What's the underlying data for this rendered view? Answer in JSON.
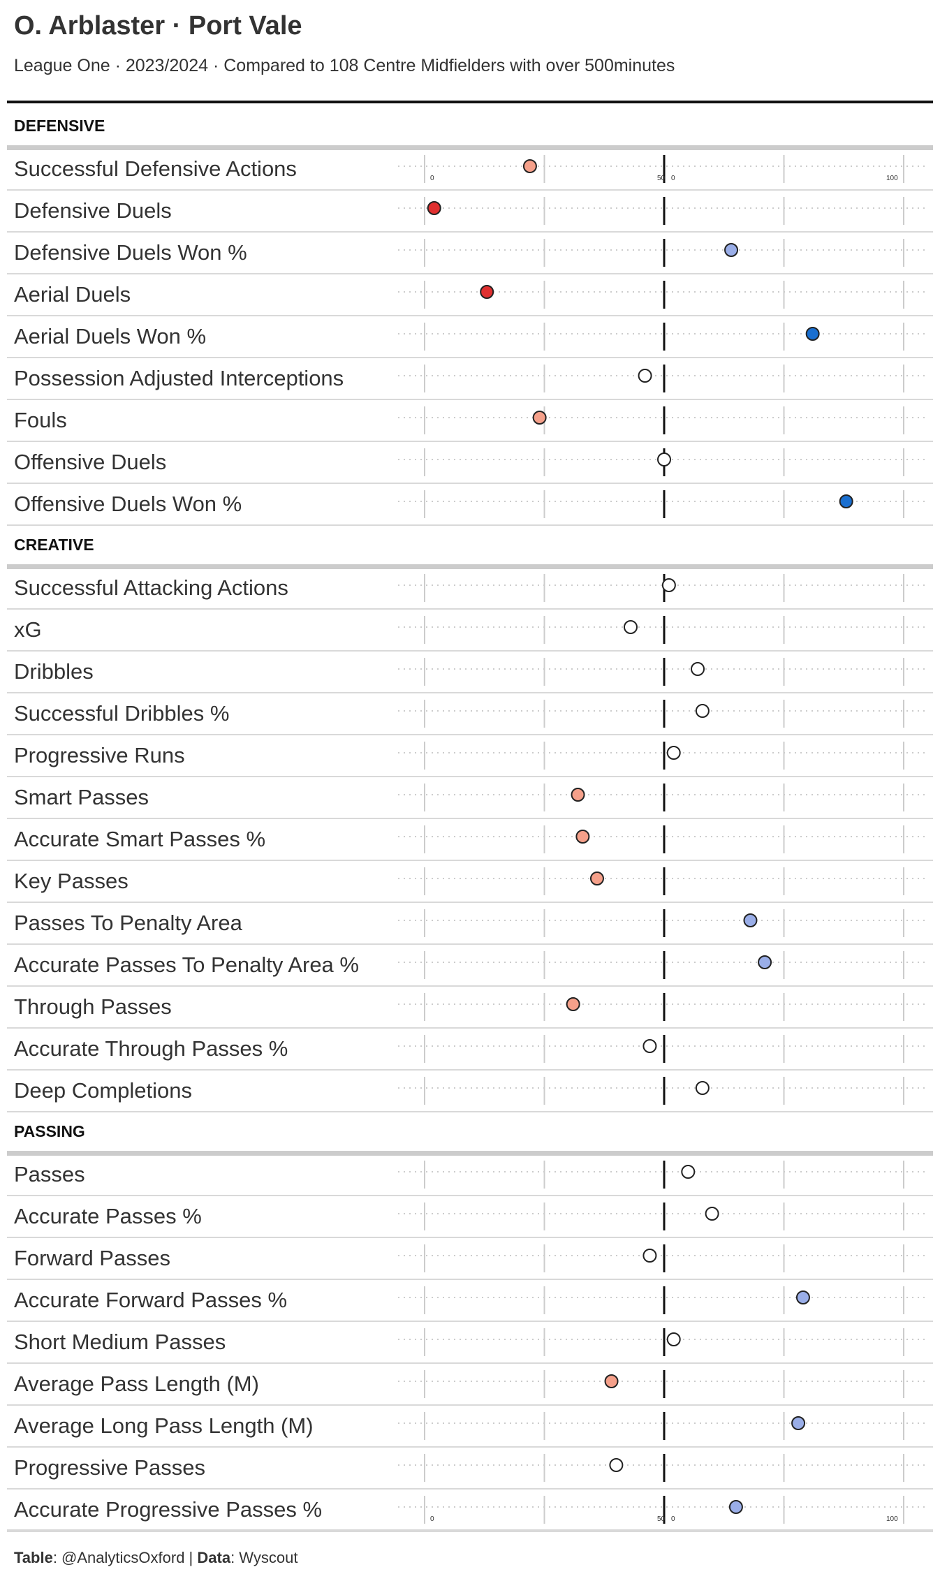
{
  "title": "O. Arblaster · Port Vale",
  "subtitle": "League One · 2023/2024 · Compared to 108 Centre Midfielders with over 500minutes",
  "footer": {
    "table_label": "Table",
    "table_value": ": @AnalyticsOxford | ",
    "data_label": "Data",
    "data_value": ": Wyscout"
  },
  "colors": {
    "very_low": "#e03030",
    "low": "#f5a08a",
    "average": "#ffffff",
    "high": "#9aaee8",
    "very_high": "#1a6fd0",
    "section_rule": "#cccccc",
    "row_rule": "#d9d9d9"
  },
  "chart_data": {
    "type": "scatter",
    "x_axis": {
      "ylim": [
        0,
        100
      ],
      "ticks": [
        0,
        25,
        50,
        75,
        100
      ],
      "tick_labels": [
        "0",
        "50",
        "100"
      ],
      "median": 50
    },
    "sections": [
      {
        "name": "DEFENSIVE",
        "metrics": [
          {
            "label": "Successful Defensive Actions",
            "value": 22,
            "color": "low"
          },
          {
            "label": "Defensive Duels",
            "value": 2,
            "color": "very_low"
          },
          {
            "label": "Defensive Duels Won %",
            "value": 64,
            "color": "high"
          },
          {
            "label": "Aerial Duels",
            "value": 13,
            "color": "very_low"
          },
          {
            "label": "Aerial Duels Won %",
            "value": 81,
            "color": "very_high"
          },
          {
            "label": "Possession Adjusted Interceptions",
            "value": 46,
            "color": "average"
          },
          {
            "label": "Fouls",
            "value": 24,
            "color": "low"
          },
          {
            "label": "Offensive Duels",
            "value": 50,
            "color": "average"
          },
          {
            "label": "Offensive Duels Won %",
            "value": 88,
            "color": "very_high"
          }
        ]
      },
      {
        "name": "CREATIVE",
        "metrics": [
          {
            "label": "Successful Attacking Actions",
            "value": 51,
            "color": "average"
          },
          {
            "label": "xG",
            "value": 43,
            "color": "average"
          },
          {
            "label": "Dribbles",
            "value": 57,
            "color": "average"
          },
          {
            "label": "Successful Dribbles %",
            "value": 58,
            "color": "average"
          },
          {
            "label": "Progressive Runs",
            "value": 52,
            "color": "average"
          },
          {
            "label": "Smart Passes",
            "value": 32,
            "color": "low"
          },
          {
            "label": "Accurate Smart Passes %",
            "value": 33,
            "color": "low"
          },
          {
            "label": "Key Passes",
            "value": 36,
            "color": "low"
          },
          {
            "label": "Passes To Penalty Area",
            "value": 68,
            "color": "high"
          },
          {
            "label": "Accurate Passes To Penalty Area %",
            "value": 71,
            "color": "high"
          },
          {
            "label": "Through Passes",
            "value": 31,
            "color": "low"
          },
          {
            "label": "Accurate Through Passes %",
            "value": 47,
            "color": "average"
          },
          {
            "label": "Deep Completions",
            "value": 58,
            "color": "average"
          }
        ]
      },
      {
        "name": "PASSING",
        "metrics": [
          {
            "label": "Passes",
            "value": 55,
            "color": "average"
          },
          {
            "label": "Accurate Passes %",
            "value": 60,
            "color": "average"
          },
          {
            "label": "Forward Passes",
            "value": 47,
            "color": "average"
          },
          {
            "label": "Accurate Forward Passes %",
            "value": 79,
            "color": "high"
          },
          {
            "label": "Short Medium Passes",
            "value": 52,
            "color": "average"
          },
          {
            "label": "Average Pass Length (M)",
            "value": 39,
            "color": "low"
          },
          {
            "label": "Average Long Pass Length (M)",
            "value": 78,
            "color": "high"
          },
          {
            "label": "Progressive Passes",
            "value": 40,
            "color": "average"
          },
          {
            "label": "Accurate Progressive Passes %",
            "value": 65,
            "color": "high"
          }
        ]
      }
    ]
  }
}
